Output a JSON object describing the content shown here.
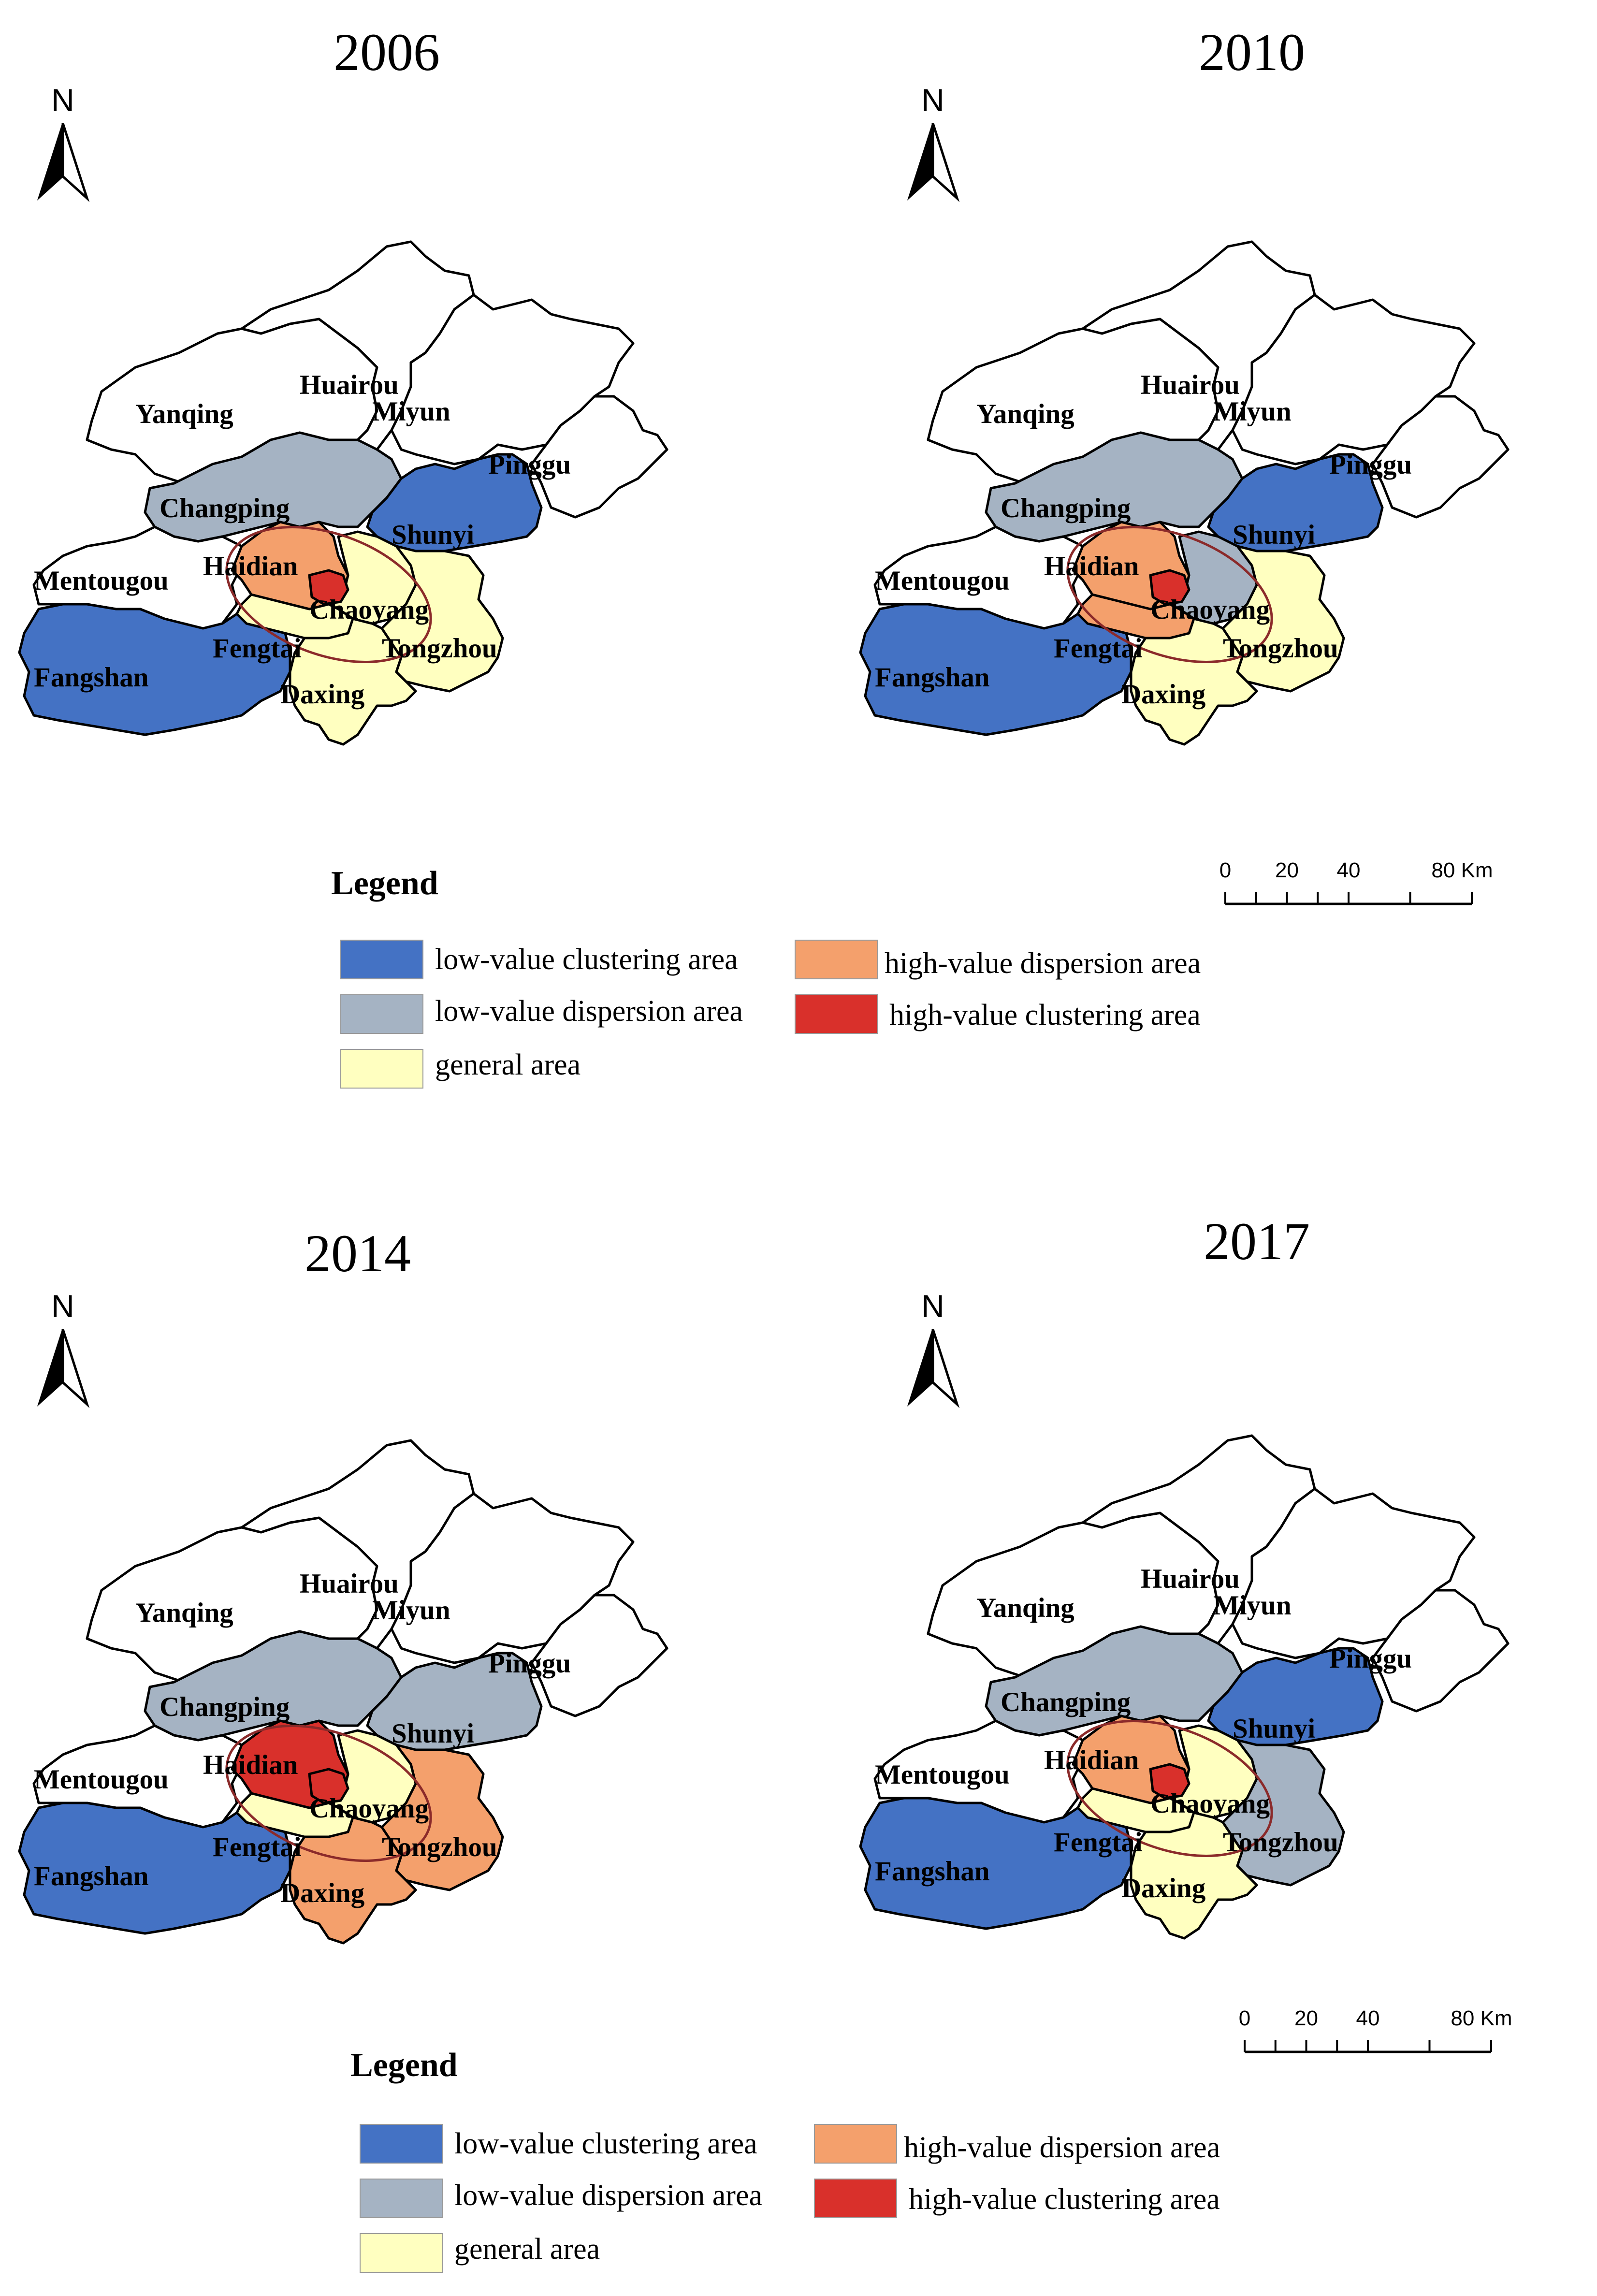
{
  "colors": {
    "low_value_clustering": "#4472c4",
    "low_value_dispersion": "#a5b3c3",
    "general": "#ffffc0",
    "high_value_dispersion": "#f4a06c",
    "high_value_clustering": "#d9302b",
    "unclassified": "#ffffff",
    "ellipse": "#8b2a2a"
  },
  "north_label": "N",
  "legend": {
    "title": "Legend",
    "items": [
      {
        "key": "low_value_clustering",
        "label": "low-value clustering area"
      },
      {
        "key": "low_value_dispersion",
        "label": "low-value dispersion area"
      },
      {
        "key": "general",
        "label": "general area"
      },
      {
        "key": "high_value_dispersion",
        "label": "high-value dispersion area"
      },
      {
        "key": "high_value_clustering",
        "label": "high-value clustering area"
      }
    ]
  },
  "scale_bar": {
    "labels": [
      "0",
      "20",
      "40",
      "80 Km"
    ]
  },
  "district_names": {
    "yanqing": "Yanqing",
    "huairou": "Huairou",
    "miyun": "Miyun",
    "pinggu": "Pinggu",
    "changping": "Changping",
    "shunyi": "Shunyi",
    "mentougou": "Mentougou",
    "haidian": "Haidian",
    "chaoyang": "Chaoyang",
    "fengtai": "Fengtai",
    "tongzhou": "Tongzhou",
    "daxing": "Daxing",
    "fangshan": "Fangshan"
  },
  "maps": [
    {
      "year": "2006",
      "classes": {
        "yanqing": "unclassified",
        "huairou": "unclassified",
        "miyun": "unclassified",
        "pinggu": "unclassified",
        "changping": "low_value_dispersion",
        "shunyi": "low_value_clustering",
        "mentougou": "unclassified",
        "haidian": "high_value_dispersion",
        "chaoyang": "general",
        "fengtai": "general",
        "tongzhou": "general",
        "daxing": "general",
        "fangshan": "low_value_clustering",
        "core": "high_value_clustering"
      }
    },
    {
      "year": "2010",
      "classes": {
        "yanqing": "unclassified",
        "huairou": "unclassified",
        "miyun": "unclassified",
        "pinggu": "unclassified",
        "changping": "low_value_dispersion",
        "shunyi": "low_value_clustering",
        "mentougou": "unclassified",
        "haidian": "high_value_dispersion",
        "chaoyang": "low_value_dispersion",
        "fengtai": "high_value_dispersion",
        "tongzhou": "general",
        "daxing": "general",
        "fangshan": "low_value_clustering",
        "core": "high_value_clustering"
      }
    },
    {
      "year": "2014",
      "classes": {
        "yanqing": "unclassified",
        "huairou": "unclassified",
        "miyun": "unclassified",
        "pinggu": "unclassified",
        "changping": "low_value_dispersion",
        "shunyi": "low_value_dispersion",
        "mentougou": "unclassified",
        "haidian": "high_value_clustering",
        "chaoyang": "general",
        "fengtai": "general",
        "tongzhou": "high_value_dispersion",
        "daxing": "high_value_dispersion",
        "fangshan": "low_value_clustering",
        "core": "high_value_clustering"
      }
    },
    {
      "year": "2017",
      "classes": {
        "yanqing": "unclassified",
        "huairou": "unclassified",
        "miyun": "unclassified",
        "pinggu": "unclassified",
        "changping": "low_value_dispersion",
        "shunyi": "low_value_clustering",
        "mentougou": "unclassified",
        "haidian": "high_value_dispersion",
        "chaoyang": "general",
        "fengtai": "general",
        "tongzhou": "low_value_dispersion",
        "daxing": "general",
        "fangshan": "low_value_clustering",
        "core": "high_value_clustering"
      }
    }
  ]
}
